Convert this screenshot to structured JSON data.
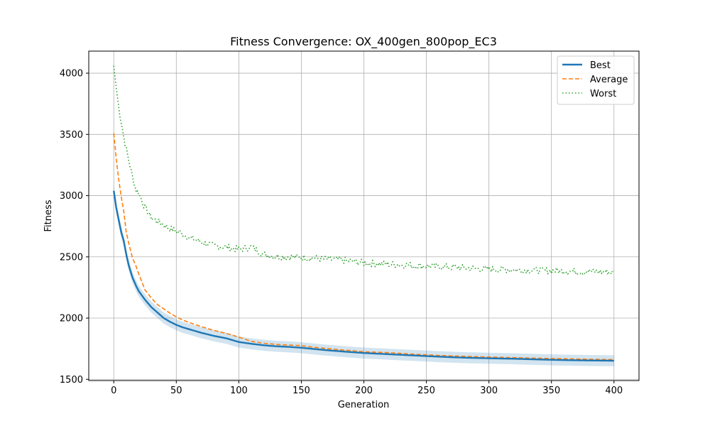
{
  "chart_data": {
    "type": "line",
    "title": "Fitness Convergence: OX_400gen_800pop_EC3",
    "xlabel": "Generation",
    "ylabel": "Fitness",
    "xlim": [
      -20,
      420
    ],
    "ylim": [
      1490,
      4180
    ],
    "xticks": [
      0,
      50,
      100,
      150,
      200,
      250,
      300,
      350,
      400
    ],
    "yticks": [
      1500,
      2000,
      2500,
      3000,
      3500,
      4000
    ],
    "grid": true,
    "legend_position": "top-right",
    "x": [
      0,
      2,
      4,
      6,
      8,
      10,
      12,
      15,
      18,
      20,
      25,
      30,
      35,
      40,
      45,
      50,
      55,
      60,
      70,
      80,
      90,
      100,
      110,
      120,
      130,
      140,
      150,
      160,
      170,
      180,
      190,
      200,
      220,
      240,
      260,
      280,
      300,
      320,
      340,
      360,
      380,
      400
    ],
    "series": [
      {
        "name": "Best",
        "color": "#1f77b4",
        "style": "solid",
        "values": [
          3040,
          2900,
          2800,
          2700,
          2630,
          2520,
          2430,
          2330,
          2260,
          2220,
          2150,
          2090,
          2045,
          2000,
          1970,
          1945,
          1925,
          1910,
          1880,
          1855,
          1835,
          1805,
          1790,
          1778,
          1770,
          1765,
          1758,
          1748,
          1738,
          1730,
          1722,
          1715,
          1705,
          1695,
          1685,
          1677,
          1672,
          1668,
          1662,
          1657,
          1654,
          1652
        ],
        "band_halfwidth": 45
      },
      {
        "name": "Average",
        "color": "#ff7f0e",
        "style": "dashed",
        "values": [
          3510,
          3300,
          3130,
          2990,
          2870,
          2700,
          2610,
          2490,
          2420,
          2360,
          2230,
          2165,
          2110,
          2075,
          2040,
          2010,
          1985,
          1965,
          1930,
          1900,
          1875,
          1845,
          1810,
          1795,
          1785,
          1780,
          1775,
          1762,
          1752,
          1742,
          1735,
          1725,
          1718,
          1705,
          1695,
          1688,
          1682,
          1677,
          1672,
          1668,
          1664,
          1661
        ]
      },
      {
        "name": "Worst",
        "color": "#2ca02c",
        "style": "dotted",
        "values": [
          4060,
          3880,
          3720,
          3600,
          3480,
          3380,
          3290,
          3150,
          3040,
          3020,
          2900,
          2820,
          2790,
          2760,
          2730,
          2710,
          2690,
          2660,
          2620,
          2590,
          2580,
          2560,
          2580,
          2520,
          2505,
          2500,
          2495,
          2490,
          2480,
          2475,
          2465,
          2450,
          2440,
          2430,
          2420,
          2410,
          2400,
          2395,
          2390,
          2385,
          2380,
          2375
        ],
        "noise": 28
      }
    ]
  }
}
